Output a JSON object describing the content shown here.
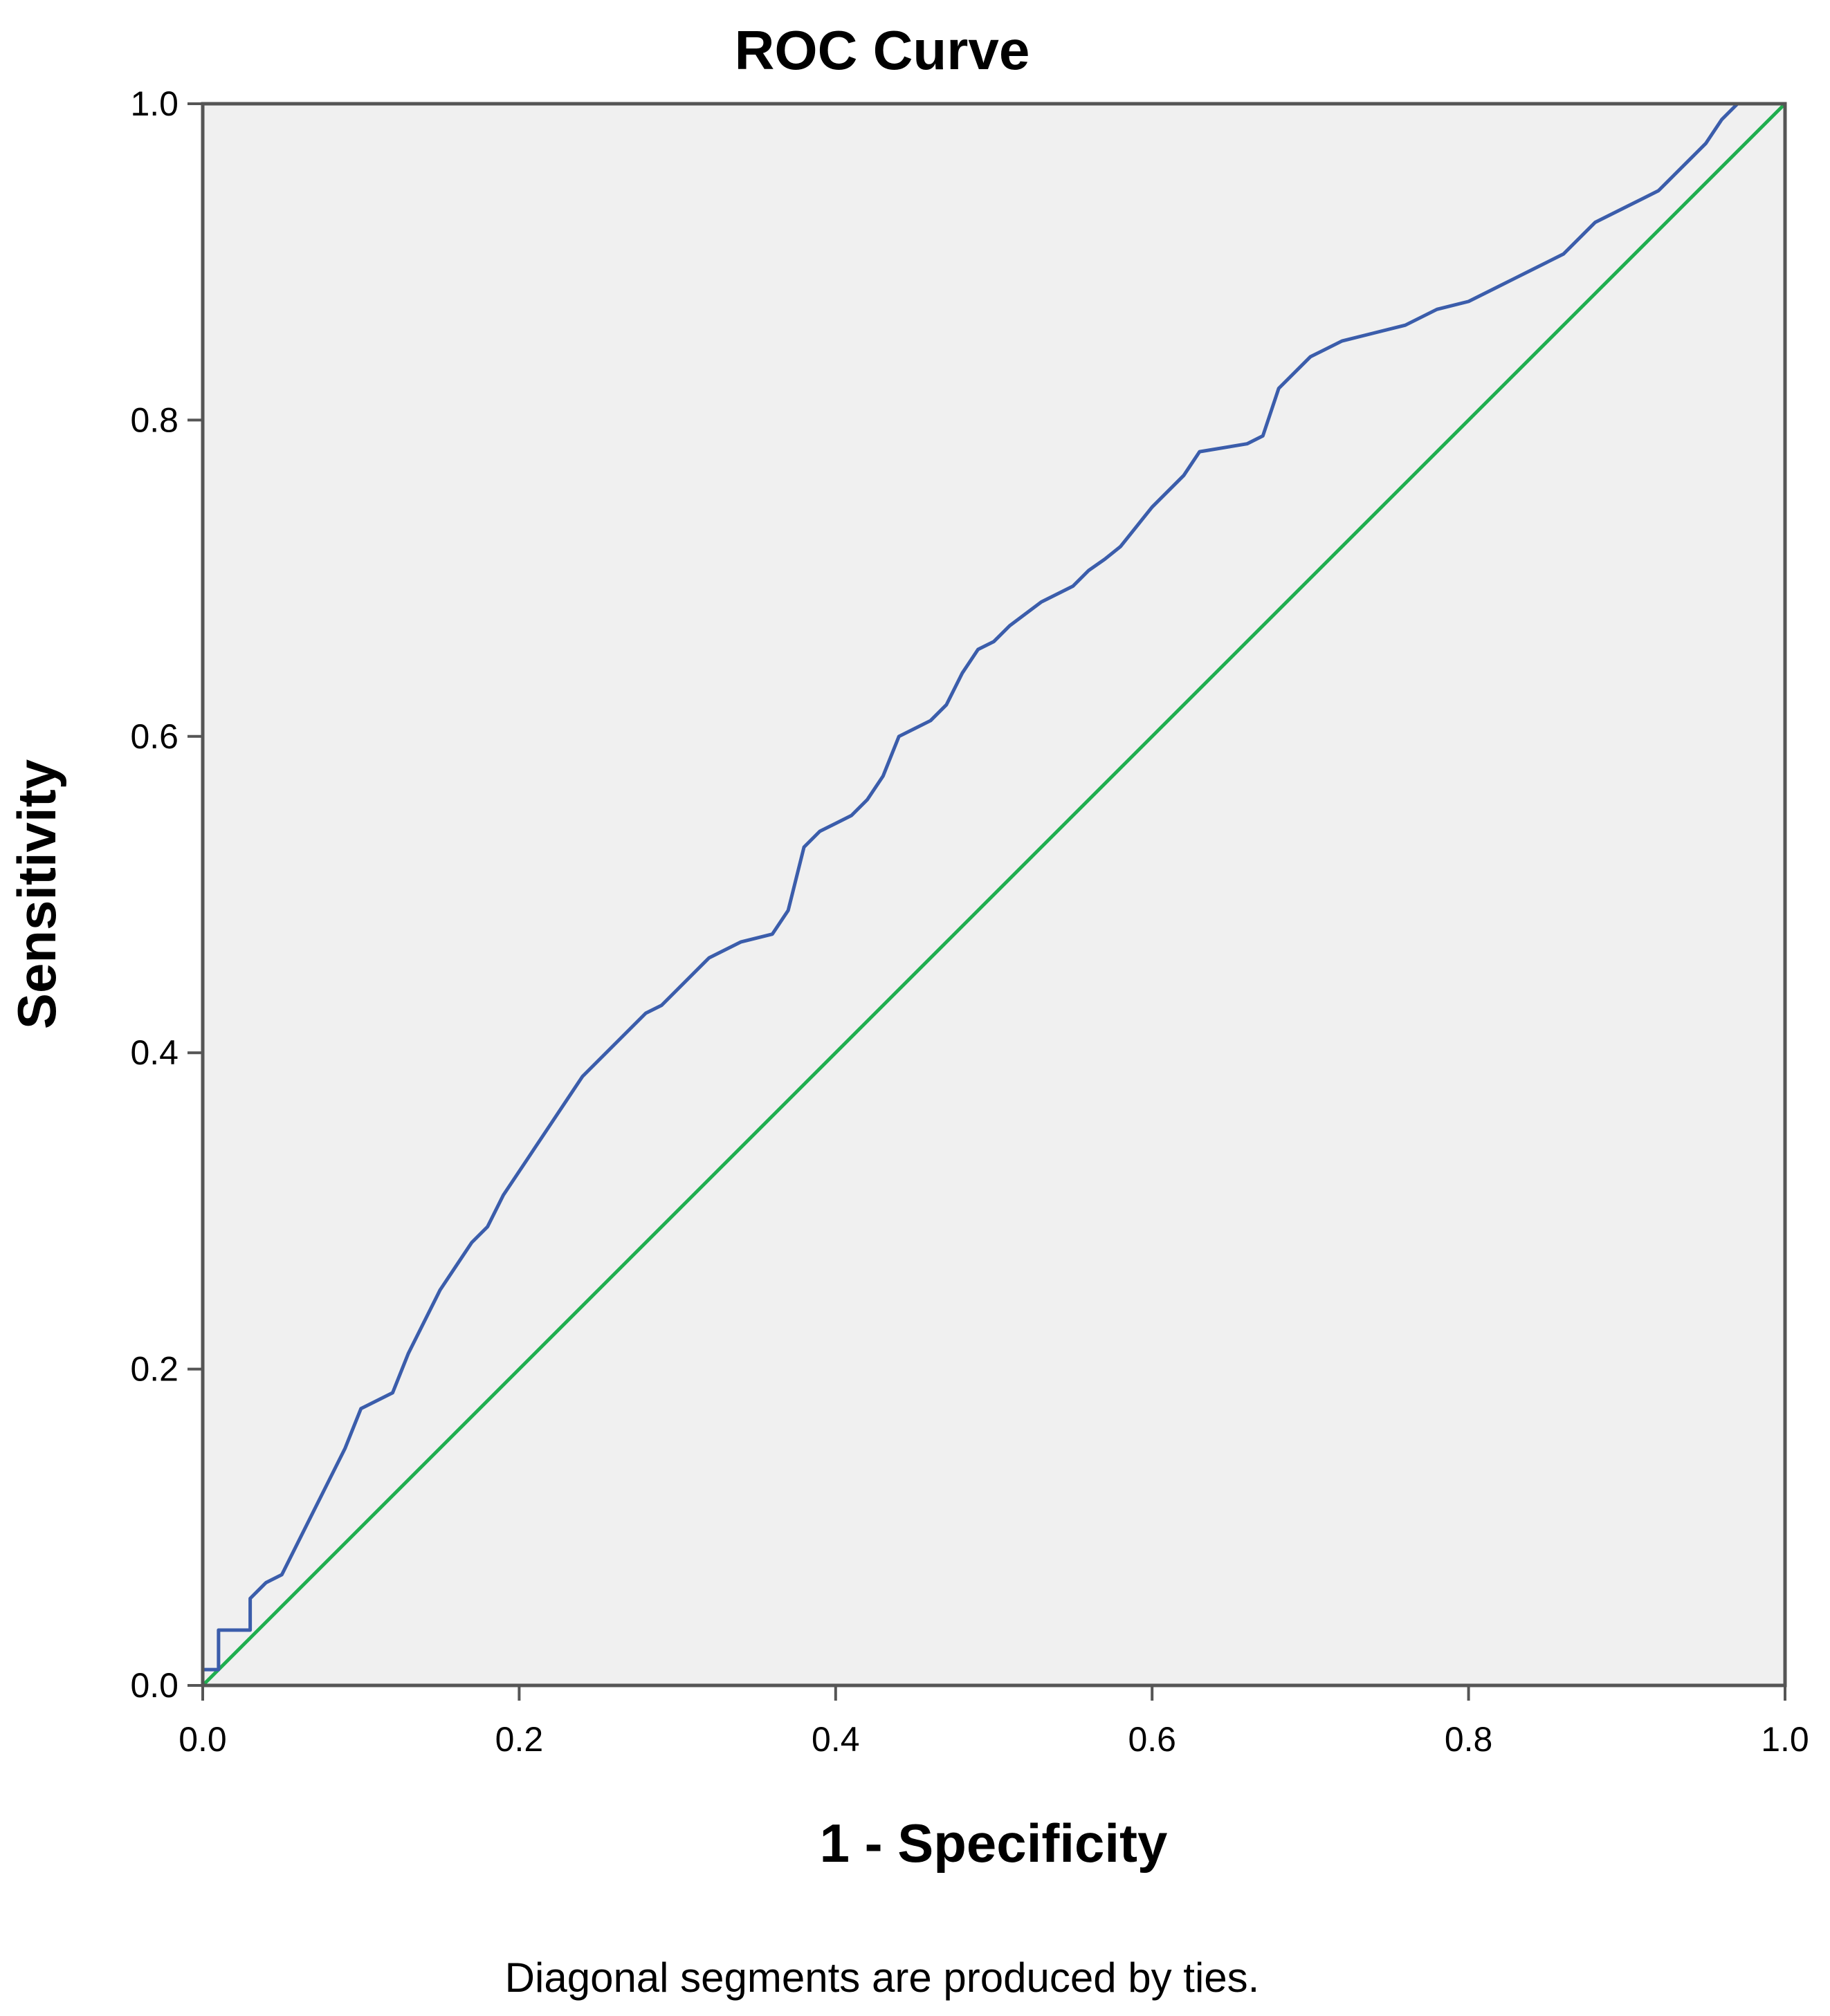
{
  "chart_data": {
    "type": "line",
    "title": "ROC Curve",
    "xlabel": "1 - Specificity",
    "ylabel": "Sensitivity",
    "footnote": "Diagonal segments are produced by ties.",
    "xlim": [
      0,
      1
    ],
    "ylim": [
      0,
      1
    ],
    "x_ticks": [
      "0.0",
      "0.2",
      "0.4",
      "0.6",
      "0.8",
      "1.0"
    ],
    "y_ticks": [
      "0.0",
      "0.2",
      "0.4",
      "0.6",
      "0.8",
      "1.0"
    ],
    "grid": false,
    "legend": "none",
    "colors": {
      "plot_background": "#f0f0f0",
      "roc_curve": "#3b5dab",
      "reference_line": "#1fae4f",
      "frame": "#555555"
    },
    "series": [
      {
        "x": [
          0.0,
          0.0,
          0.01,
          0.01,
          0.03,
          0.03,
          0.04,
          0.05,
          0.055,
          0.06,
          0.07,
          0.08,
          0.09,
          0.1,
          0.12,
          0.13,
          0.14,
          0.15,
          0.16,
          0.17,
          0.18,
          0.19,
          0.2,
          0.21,
          0.22,
          0.23,
          0.24,
          0.25,
          0.26,
          0.27,
          0.28,
          0.29,
          0.3,
          0.32,
          0.34,
          0.36,
          0.37,
          0.38,
          0.39,
          0.4,
          0.41,
          0.42,
          0.43,
          0.44,
          0.45,
          0.46,
          0.47,
          0.48,
          0.49,
          0.5,
          0.51,
          0.53,
          0.55,
          0.56,
          0.57,
          0.58,
          0.6,
          0.61,
          0.62,
          0.63,
          0.66,
          0.67,
          0.68,
          0.7,
          0.72,
          0.74,
          0.76,
          0.78,
          0.8,
          0.82,
          0.83,
          0.84,
          0.85,
          0.86,
          0.87,
          0.88,
          0.9,
          0.91,
          0.92,
          0.93,
          0.94,
          0.945,
          0.95,
          0.96,
          0.97,
          1.0
        ],
        "y": [
          0.0,
          0.01,
          0.01,
          0.035,
          0.035,
          0.055,
          0.065,
          0.07,
          0.08,
          0.09,
          0.11,
          0.13,
          0.15,
          0.175,
          0.185,
          0.21,
          0.23,
          0.25,
          0.265,
          0.28,
          0.29,
          0.31,
          0.325,
          0.34,
          0.355,
          0.37,
          0.385,
          0.395,
          0.405,
          0.415,
          0.425,
          0.43,
          0.44,
          0.46,
          0.47,
          0.475,
          0.49,
          0.53,
          0.54,
          0.545,
          0.55,
          0.56,
          0.575,
          0.6,
          0.605,
          0.61,
          0.62,
          0.64,
          0.655,
          0.66,
          0.67,
          0.685,
          0.695,
          0.705,
          0.712,
          0.72,
          0.745,
          0.755,
          0.765,
          0.78,
          0.785,
          0.79,
          0.82,
          0.84,
          0.85,
          0.855,
          0.86,
          0.87,
          0.875,
          0.885,
          0.89,
          0.895,
          0.9,
          0.905,
          0.915,
          0.925,
          0.935,
          0.94,
          0.945,
          0.955,
          0.965,
          0.97,
          0.975,
          0.99,
          1.0,
          1.0
        ]
      },
      {
        "x": [
          0.0,
          1.0
        ],
        "y": [
          0.0,
          1.0
        ]
      }
    ]
  }
}
